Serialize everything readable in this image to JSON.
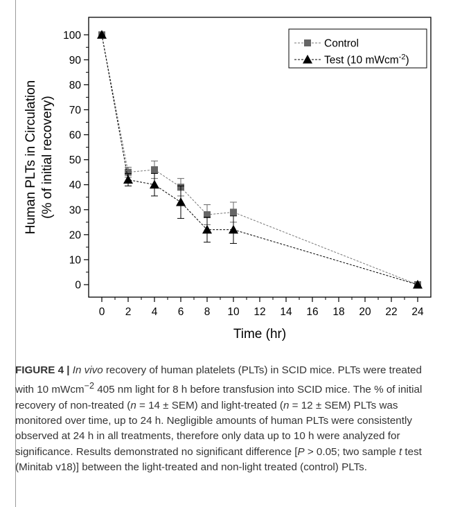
{
  "chart_data": {
    "type": "line",
    "xlabel": "Time (hr)",
    "ylabel_line1": "Human PLTs in Circulation",
    "ylabel_line2": "(% of initial recovery)",
    "xlim": [
      -1,
      25
    ],
    "ylim": [
      -5,
      107
    ],
    "xticks": [
      0,
      2,
      4,
      6,
      8,
      10,
      12,
      14,
      16,
      18,
      20,
      22,
      24
    ],
    "yticks": [
      0,
      10,
      20,
      30,
      40,
      50,
      60,
      70,
      80,
      90,
      100
    ],
    "legend_position": "top-right",
    "series": [
      {
        "name": "Control",
        "marker": "square",
        "color": "#666666",
        "x": [
          0,
          2,
          4,
          6,
          8,
          10,
          24
        ],
        "y": [
          100,
          45,
          46,
          39,
          28,
          29,
          0
        ],
        "err": [
          0,
          2,
          3.5,
          3.5,
          4,
          4,
          0
        ]
      },
      {
        "name": "Test (10 mWcm",
        "name_sup": "-2",
        "name_tail": ")",
        "marker": "triangle",
        "color": "#000000",
        "x": [
          0,
          2,
          4,
          6,
          8,
          10,
          24
        ],
        "y": [
          100,
          42,
          40,
          33,
          22,
          22,
          0
        ],
        "err": [
          0,
          2.5,
          4.5,
          6.5,
          5,
          5.5,
          0
        ]
      }
    ]
  },
  "caption": {
    "label": "FIGURE 4 |",
    "s1": "In vivo",
    "s2": " recovery of human platelets (PLTs) in SCID mice. PLTs were treated with 10 mWcm",
    "s3": "−2",
    "s4": " 405 nm light for 8 h before transfusion into SCID mice. The % of initial recovery of non-treated (",
    "s5": "n",
    "s6": " = 14 ± SEM) and light-treated (",
    "s7": "n",
    "s8": " = 12 ± SEM) PLTs was monitored over time, up to 24 h. Negligible amounts of human PLTs were consistently observed at 24 h in all treatments, therefore only data up to 10 h were analyzed for significance. Results demonstrated no significant difference [",
    "s9": "P",
    "s10": " > 0.05; two sample ",
    "s11": "t",
    "s12": " test (Minitab v18)] between the light-treated and non-light treated (control) PLTs."
  }
}
